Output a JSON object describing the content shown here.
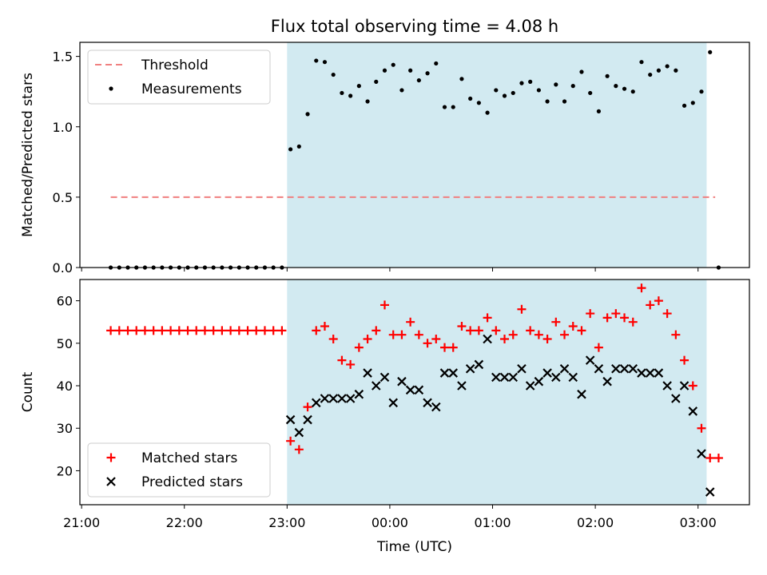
{
  "chart_data": [
    {
      "type": "scatter",
      "title": "Flux total observing time = 4.08 h",
      "ylabel": "Matched/Predicted stars",
      "xlim": [
        "20:59",
        "03:30"
      ],
      "ylim": [
        0,
        1.6
      ],
      "yticks": [
        "0.0",
        "0.5",
        "1.0",
        "1.5"
      ],
      "shaded_interval": [
        "23:00",
        "03:05"
      ],
      "shade_color": "#add8e6",
      "legend": {
        "placement": "top-left",
        "entries": [
          "Threshold",
          "Measurements"
        ]
      },
      "threshold": {
        "name": "Threshold",
        "y": 0.5,
        "x": [
          "21:17",
          "03:10"
        ],
        "color": "#f08080",
        "style": "dashed"
      },
      "series": [
        {
          "name": "Measurements",
          "color": "#000000",
          "marker": "dot",
          "x": [
            "21:17",
            "21:22",
            "21:27",
            "21:32",
            "21:37",
            "21:42",
            "21:47",
            "21:52",
            "21:57",
            "22:02",
            "22:07",
            "22:12",
            "22:17",
            "22:22",
            "22:27",
            "22:32",
            "22:37",
            "22:42",
            "22:47",
            "22:52",
            "22:57",
            "23:02",
            "23:07",
            "23:12",
            "23:17",
            "23:22",
            "23:27",
            "23:32",
            "23:37",
            "23:42",
            "23:47",
            "23:52",
            "23:57",
            "00:02",
            "00:07",
            "00:12",
            "00:17",
            "00:22",
            "00:27",
            "00:32",
            "00:37",
            "00:42",
            "00:47",
            "00:52",
            "00:57",
            "01:02",
            "01:07",
            "01:12",
            "01:17",
            "01:22",
            "01:27",
            "01:32",
            "01:37",
            "01:42",
            "01:47",
            "01:52",
            "01:57",
            "02:02",
            "02:07",
            "02:12",
            "02:17",
            "02:22",
            "02:27",
            "02:32",
            "02:37",
            "02:42",
            "02:47",
            "02:52",
            "02:57",
            "03:02",
            "03:07",
            "03:12"
          ],
          "y": [
            0,
            0,
            0,
            0,
            0,
            0,
            0,
            0,
            0,
            0,
            0,
            0,
            0,
            0,
            0,
            0,
            0,
            0,
            0,
            0,
            0,
            0.84,
            0.86,
            1.09,
            1.47,
            1.46,
            1.37,
            1.24,
            1.22,
            1.29,
            1.18,
            1.32,
            1.4,
            1.44,
            1.26,
            1.4,
            1.33,
            1.38,
            1.45,
            1.14,
            1.14,
            1.34,
            1.2,
            1.17,
            1.1,
            1.26,
            1.22,
            1.24,
            1.31,
            1.32,
            1.26,
            1.18,
            1.3,
            1.18,
            1.29,
            1.39,
            1.24,
            1.11,
            1.36,
            1.29,
            1.27,
            1.25,
            1.46,
            1.37,
            1.4,
            1.43,
            1.4,
            1.15,
            1.17,
            1.25,
            1.53,
            0
          ]
        }
      ]
    },
    {
      "type": "scatter",
      "xlabel": "Time (UTC)",
      "ylabel": "Count",
      "xlim": [
        "20:59",
        "03:30"
      ],
      "ylim": [
        12,
        65
      ],
      "xticks": [
        "21:00",
        "22:00",
        "23:00",
        "00:00",
        "01:00",
        "02:00",
        "03:00"
      ],
      "yticks": [
        "20",
        "30",
        "40",
        "50",
        "60"
      ],
      "shaded_interval": [
        "23:00",
        "03:05"
      ],
      "shade_color": "#add8e6",
      "legend": {
        "placement": "bottom-left",
        "entries": [
          "Matched stars",
          "Predicted stars"
        ]
      },
      "series": [
        {
          "name": "Matched stars",
          "color": "#ff0000",
          "marker": "plus",
          "x": [
            "21:17",
            "21:22",
            "21:27",
            "21:32",
            "21:37",
            "21:42",
            "21:47",
            "21:52",
            "21:57",
            "22:02",
            "22:07",
            "22:12",
            "22:17",
            "22:22",
            "22:27",
            "22:32",
            "22:37",
            "22:42",
            "22:47",
            "22:52",
            "22:57",
            "23:02",
            "23:07",
            "23:12",
            "23:17",
            "23:22",
            "23:27",
            "23:32",
            "23:37",
            "23:42",
            "23:47",
            "23:52",
            "23:57",
            "00:02",
            "00:07",
            "00:12",
            "00:17",
            "00:22",
            "00:27",
            "00:32",
            "00:37",
            "00:42",
            "00:47",
            "00:52",
            "00:57",
            "01:02",
            "01:07",
            "01:12",
            "01:17",
            "01:22",
            "01:27",
            "01:32",
            "01:37",
            "01:42",
            "01:47",
            "01:52",
            "01:57",
            "02:02",
            "02:07",
            "02:12",
            "02:17",
            "02:22",
            "02:27",
            "02:32",
            "02:37",
            "02:42",
            "02:47",
            "02:52",
            "02:57",
            "03:02",
            "03:07",
            "03:12"
          ],
          "y": [
            53,
            53,
            53,
            53,
            53,
            53,
            53,
            53,
            53,
            53,
            53,
            53,
            53,
            53,
            53,
            53,
            53,
            53,
            53,
            53,
            53,
            27,
            25,
            35,
            53,
            54,
            51,
            46,
            45,
            49,
            51,
            53,
            59,
            52,
            52,
            55,
            52,
            50,
            51,
            49,
            49,
            54,
            53,
            53,
            56,
            53,
            51,
            52,
            58,
            53,
            52,
            51,
            55,
            52,
            54,
            53,
            57,
            49,
            56,
            57,
            56,
            55,
            63,
            59,
            60,
            57,
            52,
            46,
            40,
            30,
            23,
            23
          ]
        },
        {
          "name": "Predicted stars",
          "color": "#000000",
          "marker": "x",
          "x": [
            "23:02",
            "23:07",
            "23:12",
            "23:17",
            "23:22",
            "23:27",
            "23:32",
            "23:37",
            "23:42",
            "23:47",
            "23:52",
            "23:57",
            "00:02",
            "00:07",
            "00:12",
            "00:17",
            "00:22",
            "00:27",
            "00:32",
            "00:37",
            "00:42",
            "00:47",
            "00:52",
            "00:57",
            "01:02",
            "01:07",
            "01:12",
            "01:17",
            "01:22",
            "01:27",
            "01:32",
            "01:37",
            "01:42",
            "01:47",
            "01:52",
            "01:57",
            "02:02",
            "02:07",
            "02:12",
            "02:17",
            "02:22",
            "02:27",
            "02:32",
            "02:37",
            "02:42",
            "02:47",
            "02:52",
            "02:57",
            "03:02",
            "03:07"
          ],
          "y": [
            32,
            29,
            32,
            36,
            37,
            37,
            37,
            37,
            38,
            43,
            40,
            42,
            36,
            41,
            39,
            39,
            36,
            35,
            43,
            43,
            40,
            44,
            45,
            51,
            42,
            42,
            42,
            44,
            40,
            41,
            43,
            42,
            44,
            42,
            38,
            46,
            44,
            41,
            44,
            44,
            44,
            43,
            43,
            43,
            40,
            37,
            40,
            34,
            24,
            15
          ]
        }
      ]
    }
  ]
}
